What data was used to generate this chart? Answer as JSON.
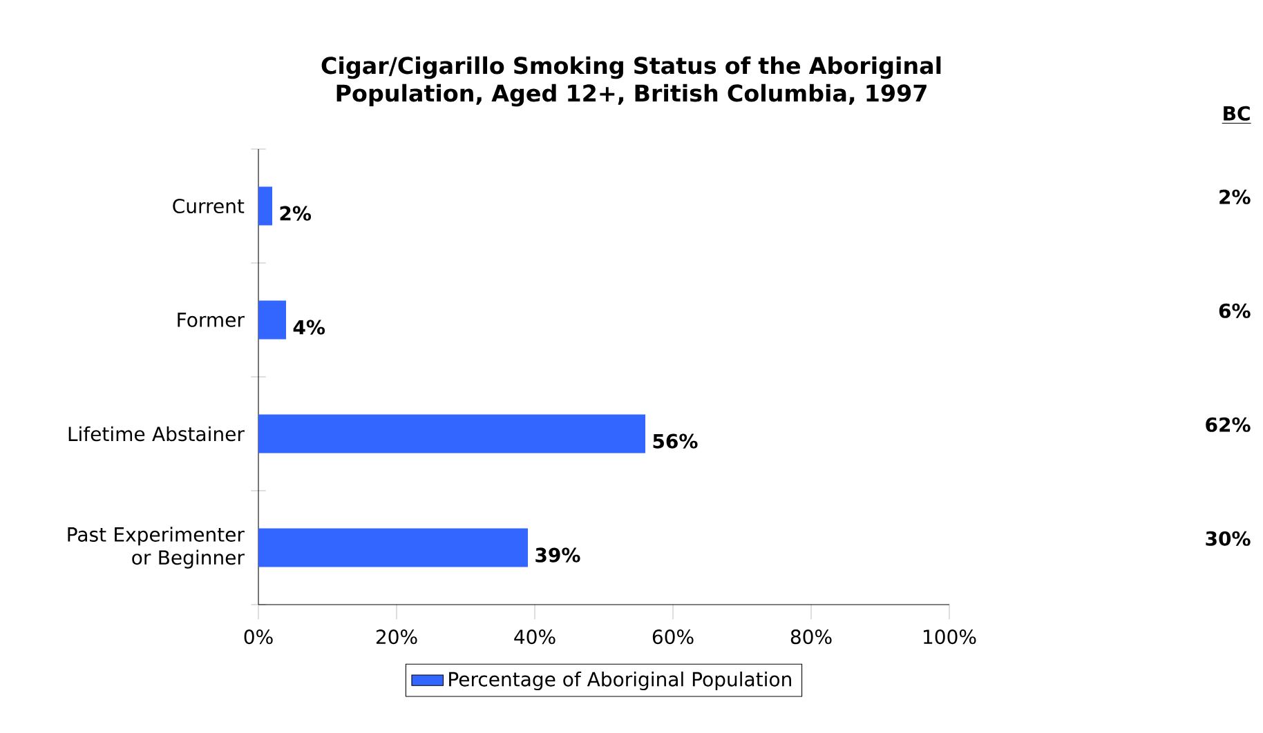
{
  "chart_data": {
    "type": "bar",
    "orientation": "horizontal",
    "title": "Cigar/Cigarillo Smoking Status of the Aboriginal Population, Aged 12+, British Columbia, 1997",
    "categories": [
      "Current",
      "Former",
      "Lifetime Abstainer",
      "Past Experimenter or Beginner"
    ],
    "series": [
      {
        "name": "Percentage of Aboriginal Population",
        "color": "#3366ff",
        "values": [
          2,
          4,
          56,
          39
        ],
        "value_labels": [
          "2%",
          "4%",
          "56%",
          "39%"
        ]
      }
    ],
    "xlim": [
      0,
      100
    ],
    "xticks": [
      {
        "value": 0,
        "label": "0%"
      },
      {
        "value": 20,
        "label": "20%"
      },
      {
        "value": 40,
        "label": "40%"
      },
      {
        "value": 60,
        "label": "60%"
      },
      {
        "value": 80,
        "label": "80%"
      },
      {
        "value": 100,
        "label": "100%"
      }
    ],
    "legend": "bottom",
    "annotations": [
      "BC",
      "2%",
      "6%",
      "62%",
      "30%"
    ]
  }
}
